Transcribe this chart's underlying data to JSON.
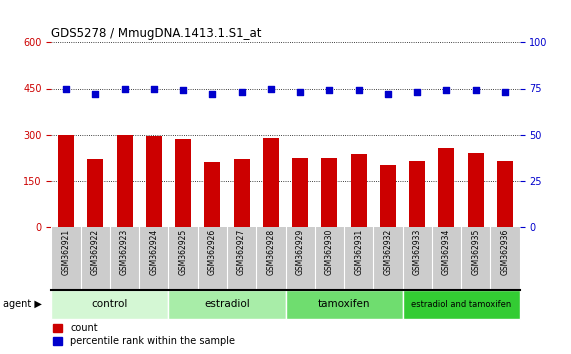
{
  "title": "GDS5278 / MmugDNA.1413.1.S1_at",
  "samples": [
    "GSM362921",
    "GSM362922",
    "GSM362923",
    "GSM362924",
    "GSM362925",
    "GSM362926",
    "GSM362927",
    "GSM362928",
    "GSM362929",
    "GSM362930",
    "GSM362931",
    "GSM362932",
    "GSM362933",
    "GSM362934",
    "GSM362935",
    "GSM362936"
  ],
  "bar_values": [
    300,
    220,
    300,
    295,
    285,
    210,
    220,
    290,
    225,
    225,
    235,
    200,
    215,
    255,
    240,
    215
  ],
  "dot_values": [
    75,
    72,
    75,
    75,
    74,
    72,
    73,
    75,
    73,
    74,
    74,
    72,
    73,
    74,
    74,
    73
  ],
  "bar_color": "#cc0000",
  "dot_color": "#0000cc",
  "ylim_left": [
    0,
    600
  ],
  "ylim_right": [
    0,
    100
  ],
  "yticks_left": [
    0,
    150,
    300,
    450,
    600
  ],
  "yticks_right": [
    0,
    25,
    50,
    75,
    100
  ],
  "groups": [
    {
      "label": "control",
      "start": 0,
      "end": 4,
      "color": "#d4f7d4"
    },
    {
      "label": "estradiol",
      "start": 4,
      "end": 8,
      "color": "#a8eda8"
    },
    {
      "label": "tamoxifen",
      "start": 8,
      "end": 12,
      "color": "#6fdd6f"
    },
    {
      "label": "estradiol and tamoxifen",
      "start": 12,
      "end": 16,
      "color": "#33cc33"
    }
  ],
  "agent_label": "agent",
  "legend_count": "count",
  "legend_percentile": "percentile rank within the sample",
  "background_color": "#ffffff",
  "tick_area_color": "#cccccc",
  "grid_color": "#000000"
}
